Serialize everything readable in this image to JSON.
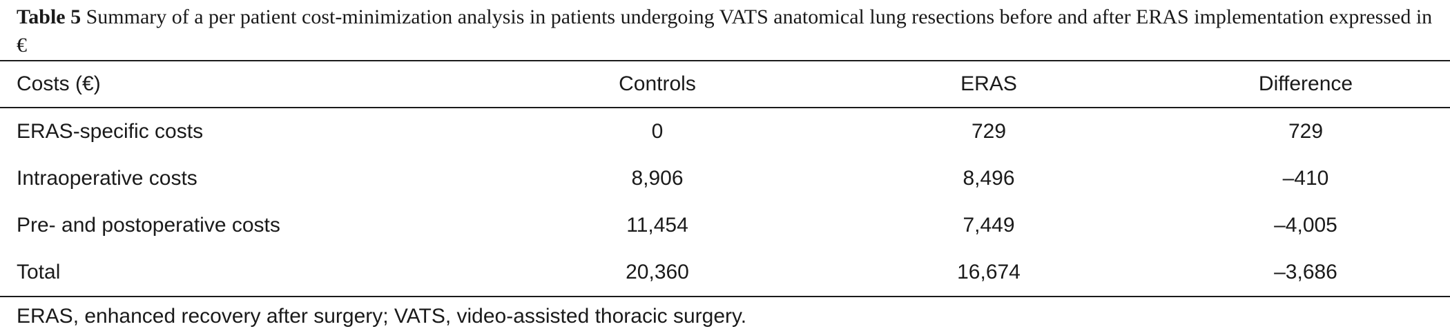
{
  "caption": {
    "label": "Table 5",
    "text": "Summary of a per patient cost-minimization analysis in patients undergoing VATS anatomical lung resections before and after ERAS implementation expressed in €"
  },
  "table": {
    "headers": [
      "Costs (€)",
      "Controls",
      "ERAS",
      "Difference"
    ],
    "rows": [
      [
        "ERAS-specific costs",
        "0",
        "729",
        "729"
      ],
      [
        "Intraoperative costs",
        "8,906",
        "8,496",
        "–410"
      ],
      [
        "Pre- and postoperative costs",
        "11,454",
        "7,449",
        "–4,005"
      ],
      [
        "Total",
        "20,360",
        "16,674",
        "–3,686"
      ]
    ]
  },
  "footnote": "ERAS, enhanced recovery after surgery; VATS, video-assisted thoracic surgery."
}
